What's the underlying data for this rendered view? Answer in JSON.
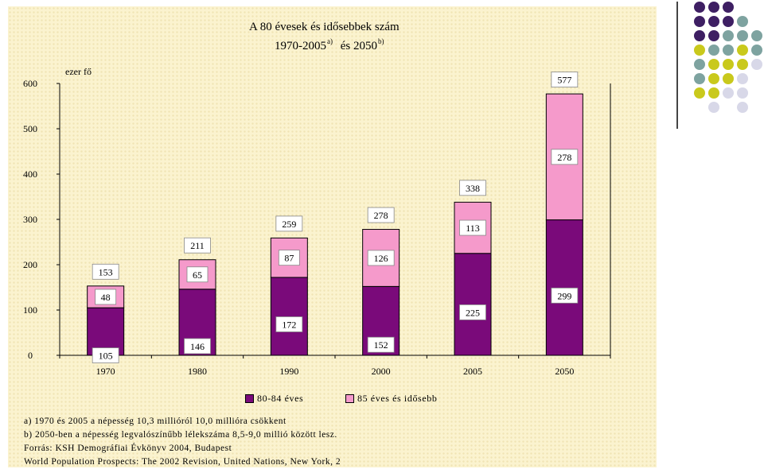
{
  "title": {
    "line1": "A 80 évesek és idősebbek szám",
    "line2_a": "1970-2005",
    "line2_a_sup": "a)",
    "line2_mid": "és 2050",
    "line2_b_sup": "b)"
  },
  "chart_data": {
    "type": "bar",
    "stacked": true,
    "ylabel": "ezer fő",
    "ylim": [
      0,
      600
    ],
    "yticks": [
      0,
      100,
      200,
      300,
      400,
      500,
      600
    ],
    "categories": [
      "1970",
      "1980",
      "1990",
      "2000",
      "2005",
      "2050"
    ],
    "series": [
      {
        "name": "80-84 éves",
        "color": "#7a0a7a",
        "values": [
          105,
          146,
          172,
          152,
          225,
          299
        ]
      },
      {
        "name": "85 éves és idősebb",
        "color": "#f59acb",
        "values": [
          48,
          65,
          87,
          126,
          113,
          278
        ]
      }
    ],
    "totals": [
      153,
      211,
      259,
      278,
      338,
      577
    ],
    "legend_position": "bottom",
    "grid": false
  },
  "notes": [
    "a) 1970 és 2005 a népesség 10,3 millióról 10,0 millióra csökkent",
    "b) 2050-ben a népesség legvalószínűbb lélekszáma 8,5-9,0 millió között lesz.",
    "Forrás: KSH Demográfiai Évkönyv 2004, Budapest",
    "World Population Prospects: The 2002 Revision, United Nations, New York, 2"
  ],
  "decoration": {
    "dot_colors": [
      "#3e1f63",
      "#7ea3a0",
      "#c9c91c",
      "#d8d8e8"
    ]
  }
}
